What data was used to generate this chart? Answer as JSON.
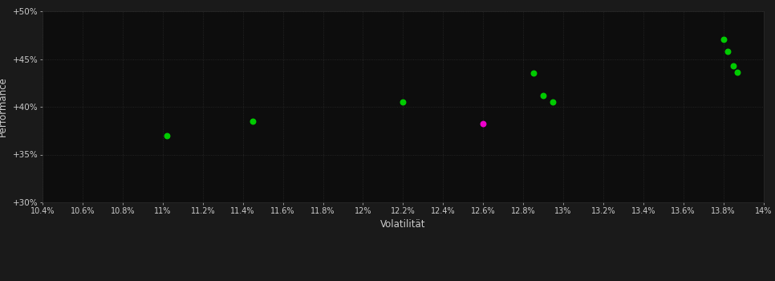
{
  "background_color": "#1a1a1a",
  "plot_bg_color": "#0d0d0d",
  "grid_color": "#2a2a2a",
  "text_color": "#cccccc",
  "xlabel": "Volatilität",
  "ylabel": "Performance",
  "xlim": [
    0.104,
    0.14
  ],
  "ylim": [
    0.3,
    0.5
  ],
  "xticks": [
    0.104,
    0.106,
    0.108,
    0.11,
    0.112,
    0.114,
    0.116,
    0.118,
    0.12,
    0.122,
    0.124,
    0.126,
    0.128,
    0.13,
    0.132,
    0.134,
    0.136,
    0.138,
    0.14
  ],
  "xtick_labels": [
    "10.4%",
    "10.6%",
    "10.8%",
    "11%",
    "11.2%",
    "11.4%",
    "11.6%",
    "11.8%",
    "12%",
    "12.2%",
    "12.4%",
    "12.6%",
    "12.8%",
    "13%",
    "13.2%",
    "13.4%",
    "13.6%",
    "13.8%",
    "14%"
  ],
  "yticks": [
    0.3,
    0.35,
    0.4,
    0.45,
    0.5
  ],
  "ytick_labels": [
    "+30%",
    "+35%",
    "+40%",
    "+45%",
    "+50%"
  ],
  "green_points": [
    [
      0.1102,
      0.37
    ],
    [
      0.1145,
      0.385
    ],
    [
      0.122,
      0.405
    ],
    [
      0.1285,
      0.435
    ],
    [
      0.129,
      0.412
    ],
    [
      0.1295,
      0.405
    ],
    [
      0.138,
      0.471
    ],
    [
      0.1382,
      0.458
    ],
    [
      0.1385,
      0.443
    ],
    [
      0.1387,
      0.436
    ]
  ],
  "magenta_points": [
    [
      0.126,
      0.382
    ]
  ],
  "green_color": "#00cc00",
  "magenta_color": "#ee00cc",
  "point_size": 22
}
